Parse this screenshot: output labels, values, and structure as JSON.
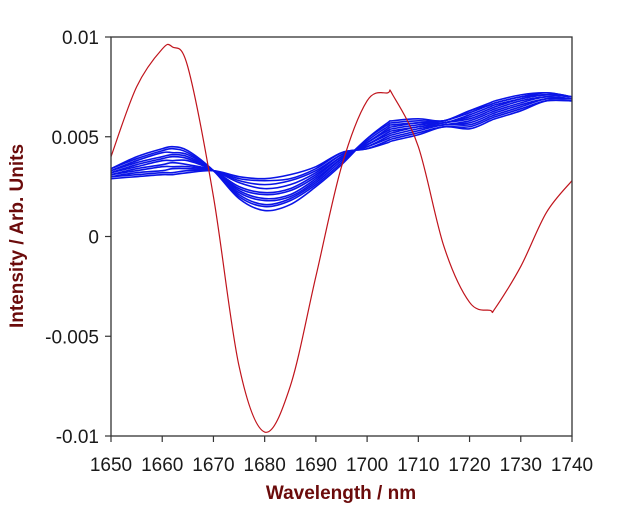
{
  "chart_data": {
    "type": "line",
    "title": "",
    "xlabel": "Wavelength / nm",
    "ylabel": "Intensity / Arb. Units",
    "xlim": [
      1650,
      1740
    ],
    "ylim": [
      -0.01,
      0.01
    ],
    "x_ticks": [
      "1650",
      "1660",
      "1670",
      "1680",
      "1690",
      "1700",
      "1710",
      "1720",
      "1730",
      "1740"
    ],
    "y_ticks": [
      "0.01",
      "0.005",
      "0",
      "-0.005",
      "-0.01"
    ],
    "grid": false,
    "legend": null,
    "colors": {
      "axis_title": "#6b0b0b",
      "red_series": "#c0141c",
      "blue_series": "#0a14e6",
      "frame": "#333333"
    },
    "x": [
      1650,
      1655,
      1660,
      1662,
      1665,
      1670,
      1675,
      1680,
      1685,
      1690,
      1695,
      1700,
      1704,
      1705,
      1710,
      1715,
      1720,
      1724,
      1725,
      1730,
      1735,
      1740
    ],
    "series": [
      {
        "name": "red-spectrum",
        "color": "#c0141c",
        "values": [
          0.004,
          0.0075,
          0.0094,
          0.0095,
          0.0085,
          0.002,
          -0.0065,
          -0.0098,
          -0.0075,
          -0.002,
          0.0035,
          0.0068,
          0.0072,
          0.0071,
          0.0045,
          -0.0005,
          -0.0033,
          -0.0037,
          -0.0036,
          -0.0015,
          0.0012,
          0.0028
        ]
      },
      {
        "name": "blue-01",
        "color": "#0a14e6",
        "values": [
          0.0034,
          0.004,
          0.0044,
          0.0045,
          0.0043,
          0.0033,
          0.0019,
          0.0013,
          0.0016,
          0.0025,
          0.0036,
          0.0049,
          0.0057,
          0.0058,
          0.0059,
          0.0058,
          0.0063,
          0.0067,
          0.0068,
          0.0071,
          0.0072,
          0.007
        ]
      },
      {
        "name": "blue-02",
        "color": "#0a14e6",
        "values": [
          0.0034,
          0.0039,
          0.0043,
          0.0044,
          0.0042,
          0.0033,
          0.002,
          0.0015,
          0.0018,
          0.0026,
          0.0037,
          0.0049,
          0.0056,
          0.0057,
          0.0058,
          0.0058,
          0.0063,
          0.0066,
          0.0067,
          0.007,
          0.0072,
          0.007
        ]
      },
      {
        "name": "blue-03",
        "color": "#0a14e6",
        "values": [
          0.0033,
          0.0038,
          0.0042,
          0.0042,
          0.0041,
          0.0033,
          0.0021,
          0.0016,
          0.0019,
          0.0027,
          0.0038,
          0.0048,
          0.0055,
          0.0056,
          0.0057,
          0.0058,
          0.0062,
          0.0066,
          0.0067,
          0.007,
          0.0071,
          0.007
        ]
      },
      {
        "name": "blue-04",
        "color": "#0a14e6",
        "values": [
          0.0033,
          0.0037,
          0.004,
          0.0041,
          0.004,
          0.0033,
          0.0022,
          0.0018,
          0.002,
          0.0028,
          0.0039,
          0.0047,
          0.0054,
          0.0055,
          0.0057,
          0.0057,
          0.0061,
          0.0065,
          0.0066,
          0.0069,
          0.0071,
          0.007
        ]
      },
      {
        "name": "blue-05",
        "color": "#0a14e6",
        "values": [
          0.0032,
          0.0036,
          0.0039,
          0.004,
          0.0039,
          0.0033,
          0.0023,
          0.0019,
          0.0021,
          0.0029,
          0.0039,
          0.0047,
          0.0053,
          0.0054,
          0.0056,
          0.0057,
          0.006,
          0.0064,
          0.0065,
          0.0069,
          0.0071,
          0.007
        ]
      },
      {
        "name": "blue-06",
        "color": "#0a14e6",
        "values": [
          0.0032,
          0.0035,
          0.0038,
          0.0038,
          0.0038,
          0.0033,
          0.0024,
          0.0021,
          0.0023,
          0.003,
          0.004,
          0.0046,
          0.0052,
          0.0053,
          0.0055,
          0.0057,
          0.0059,
          0.0063,
          0.0064,
          0.0068,
          0.007,
          0.0069
        ]
      },
      {
        "name": "blue-07",
        "color": "#0a14e6",
        "values": [
          0.0031,
          0.0034,
          0.0036,
          0.0037,
          0.0036,
          0.0033,
          0.0025,
          0.0022,
          0.0024,
          0.0031,
          0.004,
          0.0046,
          0.0051,
          0.0052,
          0.0055,
          0.0056,
          0.0058,
          0.0062,
          0.0063,
          0.0067,
          0.007,
          0.0069
        ]
      },
      {
        "name": "blue-08",
        "color": "#0a14e6",
        "values": [
          0.0031,
          0.0033,
          0.0035,
          0.0035,
          0.0035,
          0.0033,
          0.0027,
          0.0024,
          0.0026,
          0.0032,
          0.0041,
          0.0045,
          0.005,
          0.0051,
          0.0054,
          0.0056,
          0.0057,
          0.0061,
          0.0062,
          0.0066,
          0.0069,
          0.0069
        ]
      },
      {
        "name": "blue-09",
        "color": "#0a14e6",
        "values": [
          0.003,
          0.0032,
          0.0033,
          0.0034,
          0.0034,
          0.0033,
          0.0028,
          0.0026,
          0.0028,
          0.0033,
          0.0041,
          0.0045,
          0.0049,
          0.005,
          0.0053,
          0.0056,
          0.0056,
          0.006,
          0.0061,
          0.0065,
          0.0069,
          0.0069
        ]
      },
      {
        "name": "blue-10",
        "color": "#0a14e6",
        "values": [
          0.003,
          0.0031,
          0.0032,
          0.0032,
          0.0033,
          0.0033,
          0.0029,
          0.0028,
          0.0029,
          0.0034,
          0.0042,
          0.0044,
          0.0048,
          0.0049,
          0.0052,
          0.0055,
          0.0055,
          0.0059,
          0.006,
          0.0064,
          0.0068,
          0.0068
        ]
      },
      {
        "name": "blue-11",
        "color": "#0a14e6",
        "values": [
          0.0029,
          0.003,
          0.0031,
          0.0031,
          0.0032,
          0.0033,
          0.003,
          0.0029,
          0.0031,
          0.0035,
          0.0042,
          0.0044,
          0.0047,
          0.0048,
          0.0051,
          0.0055,
          0.0054,
          0.0058,
          0.0059,
          0.0063,
          0.0068,
          0.0068
        ]
      }
    ]
  }
}
